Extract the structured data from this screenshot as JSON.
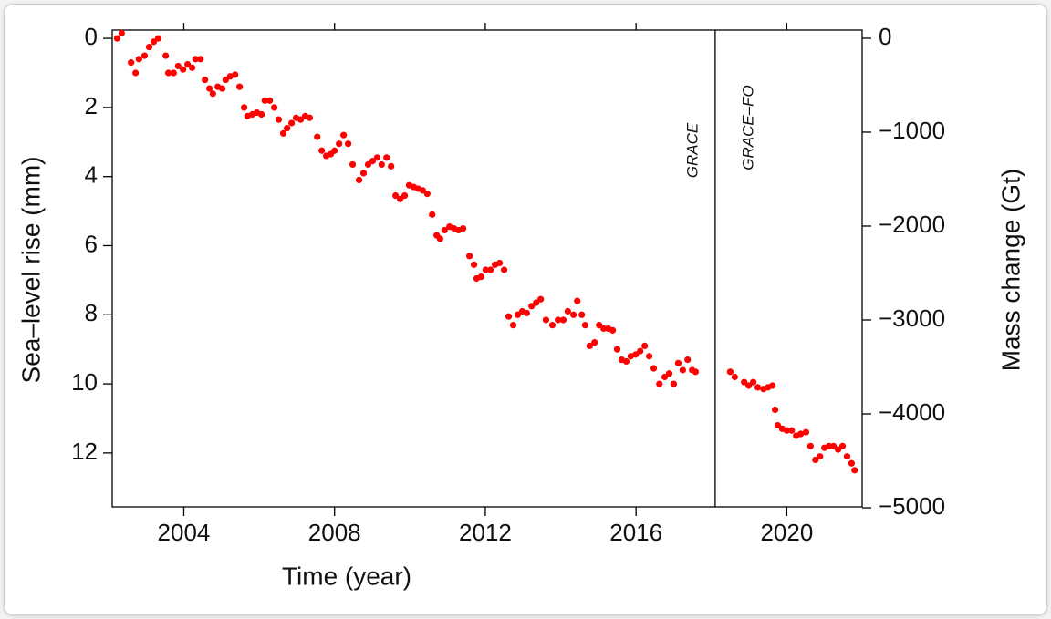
{
  "chart_data": {
    "type": "scatter",
    "xlabel": "Time (year)",
    "ylabel": "Sea–level rise (mm)",
    "y2label": "Mass change (Gt)",
    "annotations": [
      "GRACE",
      "GRACE–FO"
    ],
    "divider_x": 2018.1,
    "color": "#ff0000",
    "xlim": [
      2002.1,
      2022.0
    ],
    "xticks": [
      2004,
      2008,
      2012,
      2016,
      2020
    ],
    "ylim": [
      13.56,
      -0.24
    ],
    "yticks": [
      0,
      2,
      4,
      6,
      8,
      10,
      12
    ],
    "y2lim": [
      -4990,
      87
    ],
    "y2ticks": [
      0,
      {
        "value": -1000,
        "label": "−1000"
      },
      {
        "value": -2000,
        "label": "−2000"
      },
      {
        "value": -3000,
        "label": "−3000"
      },
      {
        "value": -4000,
        "label": "−4000"
      },
      {
        "value": -5000,
        "label": "−5000"
      }
    ],
    "x": [
      2002.23,
      2002.35,
      2002.6,
      2002.72,
      2002.81,
      2002.96,
      2003.08,
      2003.2,
      2003.32,
      2003.52,
      2003.59,
      2003.73,
      2003.85,
      2003.98,
      2004.1,
      2004.22,
      2004.31,
      2004.44,
      2004.56,
      2004.68,
      2004.77,
      2004.9,
      2005.02,
      2005.11,
      2005.23,
      2005.36,
      2005.48,
      2005.6,
      2005.69,
      2005.82,
      2005.94,
      2006.06,
      2006.15,
      2006.28,
      2006.4,
      2006.52,
      2006.64,
      2006.74,
      2006.86,
      2006.98,
      2007.1,
      2007.22,
      2007.34,
      2007.54,
      2007.66,
      2007.78,
      2007.9,
      2008.0,
      2008.12,
      2008.24,
      2008.36,
      2008.48,
      2008.65,
      2008.77,
      2008.89,
      2009.01,
      2009.13,
      2009.25,
      2009.38,
      2009.5,
      2009.62,
      2009.74,
      2009.86,
      2009.98,
      2010.1,
      2010.22,
      2010.34,
      2010.46,
      2010.59,
      2010.71,
      2010.8,
      2010.92,
      2011.05,
      2011.17,
      2011.29,
      2011.41,
      2011.58,
      2011.7,
      2011.77,
      2011.89,
      2012.01,
      2012.14,
      2012.26,
      2012.38,
      2012.5,
      2012.62,
      2012.74,
      2012.86,
      2012.98,
      2013.1,
      2013.23,
      2013.35,
      2013.47,
      2013.61,
      2013.78,
      2013.93,
      2014.07,
      2014.19,
      2014.34,
      2014.44,
      2014.56,
      2014.65,
      2014.77,
      2014.9,
      2015.02,
      2015.14,
      2015.26,
      2015.38,
      2015.5,
      2015.62,
      2015.74,
      2015.86,
      2015.99,
      2016.11,
      2016.23,
      2016.35,
      2016.47,
      2016.62,
      2016.76,
      2016.88,
      2017.0,
      2017.12,
      2017.24,
      2017.37,
      2017.49,
      2017.58,
      2018.5,
      2018.62,
      2018.87,
      2018.99,
      2019.11,
      2019.23,
      2019.38,
      2019.5,
      2019.62,
      2019.69,
      2019.76,
      2019.88,
      2020.0,
      2020.13,
      2020.25,
      2020.37,
      2020.51,
      2020.63,
      2020.76,
      2020.88,
      2021.0,
      2021.12,
      2021.24,
      2021.36,
      2021.48,
      2021.6,
      2021.72,
      2021.8
    ],
    "values": [
      0,
      -0.15,
      0.7,
      1.0,
      0.6,
      0.5,
      0.25,
      0.1,
      0.0,
      0.5,
      1.0,
      1.0,
      0.8,
      0.9,
      0.75,
      0.85,
      0.6,
      0.6,
      1.2,
      1.45,
      1.6,
      1.4,
      1.45,
      1.2,
      1.1,
      1.05,
      1.4,
      2.0,
      2.25,
      2.2,
      2.15,
      2.2,
      1.8,
      1.8,
      2.0,
      2.35,
      2.75,
      2.6,
      2.45,
      2.3,
      2.35,
      2.25,
      2.3,
      2.85,
      3.25,
      3.4,
      3.35,
      3.25,
      3.05,
      2.8,
      3.05,
      3.65,
      4.1,
      3.9,
      3.65,
      3.55,
      3.45,
      3.65,
      3.45,
      3.7,
      4.55,
      4.65,
      4.55,
      4.25,
      4.3,
      4.35,
      4.4,
      4.5,
      5.1,
      5.7,
      5.8,
      5.55,
      5.45,
      5.5,
      5.55,
      5.5,
      6.3,
      6.55,
      6.95,
      6.9,
      6.7,
      6.7,
      6.55,
      6.5,
      6.7,
      8.05,
      8.3,
      8.0,
      7.9,
      7.95,
      7.75,
      7.65,
      7.55,
      8.15,
      8.3,
      8.15,
      8.15,
      7.9,
      8.0,
      7.6,
      8.0,
      8.3,
      8.9,
      8.8,
      8.3,
      8.4,
      8.4,
      8.45,
      9.0,
      9.3,
      9.35,
      9.2,
      9.15,
      9.05,
      8.9,
      9.2,
      9.55,
      10.0,
      9.8,
      9.7,
      10.0,
      9.4,
      9.6,
      9.3,
      9.6,
      9.65,
      9.65,
      9.8,
      9.95,
      10.05,
      9.95,
      10.1,
      10.15,
      10.1,
      10.05,
      10.75,
      11.2,
      11.3,
      11.35,
      11.35,
      11.5,
      11.45,
      11.4,
      11.8,
      12.2,
      12.1,
      11.85,
      11.8,
      11.8,
      11.9,
      11.8,
      12.1,
      12.3,
      12.5
    ]
  }
}
